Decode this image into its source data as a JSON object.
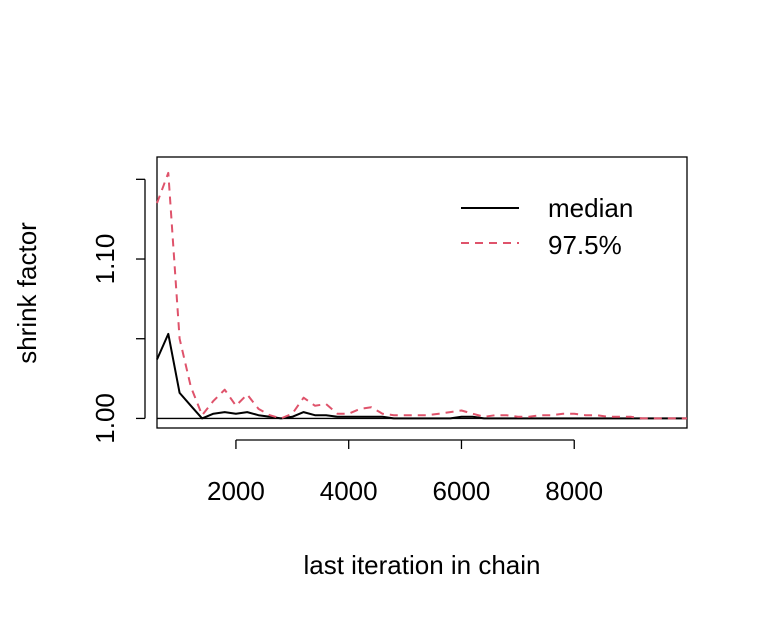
{
  "chart_data": {
    "type": "line",
    "title": "",
    "xlabel": "last iteration in chain",
    "ylabel": "shrink factor",
    "xlim": [
      600,
      10000
    ],
    "ylim": [
      0.994,
      1.164
    ],
    "x_ticks": [
      2000,
      4000,
      6000,
      8000
    ],
    "x_tick_labels": [
      "2000",
      "4000",
      "6000",
      "8000"
    ],
    "y_ticks": [
      1.0,
      1.05,
      1.1,
      1.15
    ],
    "y_tick_labels": [
      "1.00",
      "",
      "1.10",
      ""
    ],
    "reference_line": 1.0,
    "grid": false,
    "legend_position": "top-right",
    "series": [
      {
        "name": "median",
        "color": "#000000",
        "style": "solid",
        "x": [
          600,
          800,
          1000,
          1200,
          1400,
          1600,
          1800,
          2000,
          2200,
          2400,
          2600,
          2800,
          3000,
          3200,
          3400,
          3600,
          3800,
          4000,
          4200,
          4400,
          4600,
          4800,
          5000,
          5200,
          5400,
          5600,
          5800,
          6000,
          6200,
          6400,
          6600,
          6800,
          7000,
          7200,
          7400,
          7600,
          7800,
          8000,
          8200,
          8400,
          8600,
          8800,
          9000,
          9200,
          9400,
          9600,
          9800,
          10000
        ],
        "values": [
          1.037,
          1.053,
          1.016,
          1.008,
          1.0,
          1.003,
          1.004,
          1.003,
          1.004,
          1.002,
          1.001,
          1.0,
          1.001,
          1.004,
          1.002,
          1.002,
          1.001,
          1.001,
          1.001,
          1.001,
          1.001,
          1.0,
          1.0,
          1.0,
          1.0,
          1.0,
          1.0,
          1.001,
          1.001,
          1.0,
          1.0,
          1.0,
          1.0,
          1.0,
          1.0,
          1.0,
          1.0,
          1.0,
          1.0,
          1.0,
          1.0,
          1.0,
          1.0,
          1.0,
          1.0,
          1.0,
          1.0,
          1.0
        ]
      },
      {
        "name": "97.5%",
        "color": "#DF536B",
        "style": "dashed",
        "x": [
          600,
          800,
          1000,
          1200,
          1400,
          1600,
          1800,
          2000,
          2200,
          2400,
          2600,
          2800,
          3000,
          3200,
          3400,
          3600,
          3800,
          4000,
          4200,
          4400,
          4600,
          4800,
          5000,
          5200,
          5400,
          5600,
          5800,
          6000,
          6200,
          6400,
          6600,
          6800,
          7000,
          7200,
          7400,
          7600,
          7800,
          8000,
          8200,
          8400,
          8600,
          8800,
          9000,
          9200,
          9400,
          9600,
          9800,
          10000
        ],
        "values": [
          1.135,
          1.154,
          1.05,
          1.02,
          1.002,
          1.011,
          1.018,
          1.008,
          1.015,
          1.006,
          1.002,
          1.0,
          1.003,
          1.013,
          1.008,
          1.009,
          1.003,
          1.003,
          1.006,
          1.007,
          1.003,
          1.002,
          1.002,
          1.002,
          1.002,
          1.003,
          1.004,
          1.005,
          1.003,
          1.001,
          1.002,
          1.002,
          1.001,
          1.001,
          1.002,
          1.002,
          1.003,
          1.003,
          1.002,
          1.002,
          1.001,
          1.001,
          1.001,
          1.0,
          1.0,
          1.0,
          1.0,
          1.0
        ]
      }
    ]
  }
}
